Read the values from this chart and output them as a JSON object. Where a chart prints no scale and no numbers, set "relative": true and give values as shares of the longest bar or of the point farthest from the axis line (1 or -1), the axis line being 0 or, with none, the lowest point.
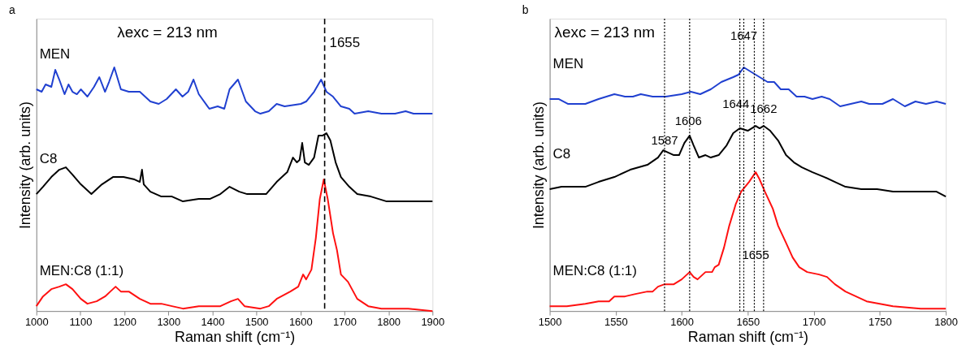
{
  "chart_data": [
    {
      "type": "line",
      "title": "a",
      "xlabel": "Raman shift (cm⁻¹)",
      "ylabel": "Intensity (arb. units)",
      "relative": true,
      "xlim": [
        1000,
        1900
      ],
      "xticks": [
        1000,
        1100,
        1200,
        1300,
        1400,
        1500,
        1600,
        1700,
        1800,
        1900
      ],
      "series": [
        {
          "name": "MEN",
          "color": "#2040d0",
          "x": [
            1000,
            1012,
            1021,
            1034,
            1043,
            1052,
            1064,
            1073,
            1082,
            1092,
            1101,
            1116,
            1131,
            1143,
            1156,
            1165,
            1177,
            1192,
            1210,
            1235,
            1259,
            1278,
            1296,
            1317,
            1332,
            1345,
            1357,
            1369,
            1393,
            1412,
            1427,
            1439,
            1458,
            1476,
            1497,
            1509,
            1528,
            1546,
            1564,
            1601,
            1613,
            1631,
            1647,
            1659,
            1674,
            1692,
            1711,
            1723,
            1754,
            1784,
            1815,
            1839,
            1857,
            1900
          ],
          "values": [
            0.91,
            0.9,
            0.93,
            0.92,
            0.99,
            0.95,
            0.89,
            0.93,
            0.9,
            0.89,
            0.91,
            0.88,
            0.92,
            0.96,
            0.9,
            0.94,
            1.0,
            0.91,
            0.9,
            0.9,
            0.86,
            0.85,
            0.87,
            0.91,
            0.88,
            0.9,
            0.95,
            0.89,
            0.83,
            0.84,
            0.83,
            0.91,
            0.95,
            0.86,
            0.82,
            0.81,
            0.82,
            0.85,
            0.84,
            0.85,
            0.86,
            0.9,
            0.95,
            0.9,
            0.88,
            0.84,
            0.83,
            0.81,
            0.82,
            0.81,
            0.81,
            0.82,
            0.81,
            0.81
          ]
        },
        {
          "name": "C8",
          "color": "#000000",
          "x": [
            1000,
            1015,
            1034,
            1052,
            1067,
            1082,
            1101,
            1125,
            1149,
            1174,
            1198,
            1223,
            1235,
            1240,
            1244,
            1259,
            1284,
            1308,
            1333,
            1369,
            1394,
            1418,
            1439,
            1461,
            1479,
            1522,
            1546,
            1570,
            1583,
            1592,
            1598,
            1604,
            1610,
            1619,
            1631,
            1641,
            1650,
            1659,
            1668,
            1680,
            1692,
            1711,
            1729,
            1760,
            1796,
            1845,
            1900
          ],
          "values": [
            0.48,
            0.51,
            0.55,
            0.58,
            0.59,
            0.56,
            0.52,
            0.48,
            0.52,
            0.55,
            0.55,
            0.54,
            0.53,
            0.58,
            0.52,
            0.49,
            0.47,
            0.47,
            0.45,
            0.46,
            0.46,
            0.48,
            0.51,
            0.49,
            0.48,
            0.48,
            0.53,
            0.57,
            0.63,
            0.61,
            0.62,
            0.69,
            0.61,
            0.6,
            0.63,
            0.72,
            0.72,
            0.73,
            0.7,
            0.61,
            0.55,
            0.51,
            0.48,
            0.47,
            0.45,
            0.45,
            0.45
          ]
        },
        {
          "name": "MEN:C8 (1:1)",
          "color": "#ff1010",
          "x": [
            1000,
            1015,
            1034,
            1052,
            1067,
            1082,
            1101,
            1116,
            1137,
            1156,
            1168,
            1180,
            1192,
            1210,
            1235,
            1259,
            1284,
            1308,
            1333,
            1369,
            1418,
            1442,
            1458,
            1473,
            1509,
            1528,
            1546,
            1577,
            1595,
            1606,
            1613,
            1625,
            1635,
            1644,
            1653,
            1662,
            1674,
            1683,
            1692,
            1708,
            1729,
            1754,
            1784,
            1845,
            1900
          ],
          "values": [
            0.02,
            0.06,
            0.09,
            0.1,
            0.11,
            0.09,
            0.05,
            0.03,
            0.04,
            0.06,
            0.08,
            0.1,
            0.08,
            0.08,
            0.05,
            0.03,
            0.03,
            0.02,
            0.01,
            0.02,
            0.02,
            0.04,
            0.05,
            0.02,
            0.01,
            0.02,
            0.05,
            0.08,
            0.1,
            0.15,
            0.13,
            0.17,
            0.3,
            0.46,
            0.54,
            0.46,
            0.32,
            0.25,
            0.15,
            0.12,
            0.05,
            0.02,
            0.01,
            0.01,
            0.0
          ]
        }
      ],
      "ref_lines": [
        {
          "axis": "x",
          "value": 1655,
          "label": "1655",
          "color": "#000000",
          "line_style": "dashed"
        }
      ],
      "annotations": [
        "λexc = 213 nm"
      ]
    },
    {
      "type": "line",
      "title": "b",
      "xlabel": "Raman shift (cm⁻¹)",
      "ylabel": "Intensity (arb. units)",
      "relative": true,
      "xlim": [
        1500,
        1800
      ],
      "xticks": [
        1500,
        1550,
        1600,
        1650,
        1700,
        1750,
        1800
      ],
      "series": [
        {
          "name": "MEN",
          "color": "#2040d0",
          "x": [
            1500,
            1507,
            1514,
            1521,
            1527,
            1537,
            1549,
            1557,
            1563,
            1569,
            1578,
            1588,
            1600,
            1607,
            1614,
            1622,
            1630,
            1639,
            1643,
            1647,
            1653,
            1659,
            1665,
            1670,
            1675,
            1681,
            1687,
            1693,
            1699,
            1706,
            1712,
            1720,
            1728,
            1736,
            1742,
            1752,
            1760,
            1769,
            1777,
            1785,
            1793,
            1800
          ],
          "values": [
            0.87,
            0.87,
            0.85,
            0.85,
            0.85,
            0.87,
            0.89,
            0.88,
            0.88,
            0.89,
            0.88,
            0.88,
            0.89,
            0.9,
            0.89,
            0.91,
            0.94,
            0.96,
            0.97,
            1.0,
            0.98,
            0.96,
            0.94,
            0.94,
            0.91,
            0.91,
            0.88,
            0.88,
            0.87,
            0.88,
            0.87,
            0.84,
            0.85,
            0.86,
            0.85,
            0.85,
            0.87,
            0.84,
            0.86,
            0.85,
            0.86,
            0.85
          ]
        },
        {
          "name": "C8",
          "color": "#000000",
          "x": [
            1500,
            1509,
            1517,
            1527,
            1537,
            1549,
            1561,
            1574,
            1582,
            1586,
            1590,
            1594,
            1598,
            1602,
            1606,
            1609,
            1613,
            1618,
            1622,
            1628,
            1634,
            1639,
            1644,
            1650,
            1656,
            1659,
            1662,
            1667,
            1673,
            1679,
            1685,
            1691,
            1699,
            1708,
            1716,
            1724,
            1736,
            1748,
            1760,
            1773,
            1785,
            1793,
            1800
          ],
          "values": [
            0.5,
            0.51,
            0.51,
            0.51,
            0.53,
            0.55,
            0.58,
            0.6,
            0.63,
            0.66,
            0.65,
            0.64,
            0.64,
            0.69,
            0.72,
            0.68,
            0.63,
            0.64,
            0.63,
            0.64,
            0.68,
            0.73,
            0.75,
            0.74,
            0.76,
            0.75,
            0.76,
            0.74,
            0.7,
            0.64,
            0.61,
            0.59,
            0.57,
            0.55,
            0.53,
            0.51,
            0.5,
            0.5,
            0.49,
            0.49,
            0.49,
            0.49,
            0.47
          ]
        },
        {
          "name": "MEN:C8 (1:1)",
          "color": "#ff1010",
          "x": [
            1500,
            1513,
            1527,
            1537,
            1545,
            1549,
            1557,
            1565,
            1574,
            1578,
            1582,
            1587,
            1594,
            1600,
            1606,
            1609,
            1612,
            1618,
            1623,
            1625,
            1628,
            1632,
            1636,
            1641,
            1645,
            1651,
            1656,
            1659,
            1663,
            1669,
            1673,
            1679,
            1684,
            1689,
            1695,
            1704,
            1710,
            1716,
            1724,
            1732,
            1740,
            1750,
            1760,
            1781,
            1800
          ],
          "values": [
            0.02,
            0.02,
            0.03,
            0.04,
            0.04,
            0.06,
            0.06,
            0.07,
            0.08,
            0.08,
            0.1,
            0.11,
            0.11,
            0.13,
            0.16,
            0.14,
            0.13,
            0.16,
            0.16,
            0.18,
            0.19,
            0.26,
            0.35,
            0.44,
            0.49,
            0.53,
            0.57,
            0.54,
            0.49,
            0.42,
            0.35,
            0.28,
            0.22,
            0.18,
            0.16,
            0.15,
            0.14,
            0.11,
            0.08,
            0.06,
            0.04,
            0.03,
            0.02,
            0.01,
            0.01
          ]
        }
      ],
      "ref_lines": [
        {
          "axis": "x",
          "value": 1647,
          "color": "#000000",
          "line_style": "dotted"
        },
        {
          "axis": "x",
          "value": 1587,
          "color": "#000000",
          "line_style": "dotted"
        },
        {
          "axis": "x",
          "value": 1606,
          "color": "#000000",
          "line_style": "dotted"
        },
        {
          "axis": "x",
          "value": 1644,
          "color": "#000000",
          "line_style": "dotted"
        },
        {
          "axis": "x",
          "value": 1662,
          "color": "#000000",
          "line_style": "dotted"
        },
        {
          "axis": "x",
          "value": 1655,
          "color": "#000000",
          "line_style": "dotted"
        }
      ],
      "annotations": [
        "λexc = 213 nm",
        {
          "text": "1647",
          "x": 1647,
          "y": 1.13
        },
        {
          "text": "1587",
          "x": 1587,
          "y": 0.7
        },
        {
          "text": "1606",
          "x": 1605,
          "y": 0.78
        },
        {
          "text": "1644",
          "x": 1641,
          "y": 0.85
        },
        {
          "text": "1662",
          "x": 1662,
          "y": 0.83
        },
        {
          "text": "1655",
          "x": 1656,
          "y": 0.23
        }
      ]
    }
  ]
}
